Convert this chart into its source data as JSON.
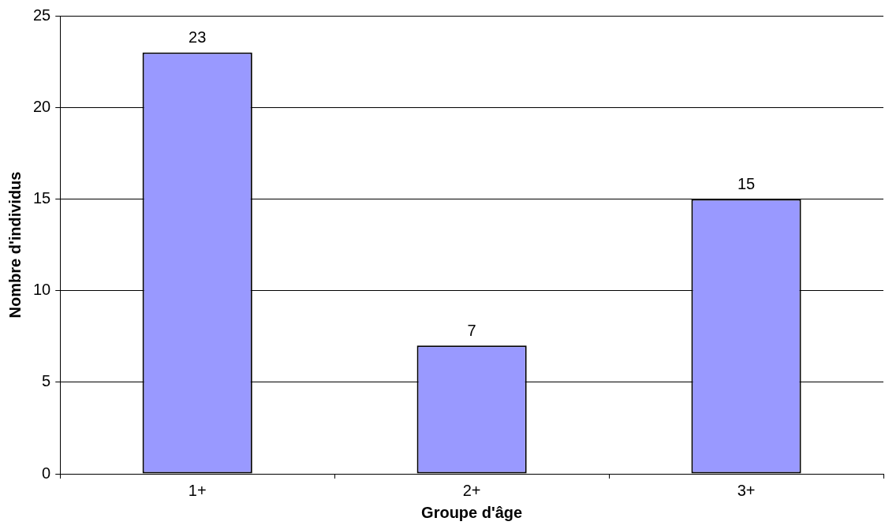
{
  "chart_data": {
    "type": "bar",
    "xlabel": "Groupe d'âge",
    "ylabel": "Nombre d'individus",
    "categories": [
      "1+",
      "2+",
      "3+"
    ],
    "values": [
      23,
      7,
      15
    ],
    "color": "#9999ff",
    "ylim": [
      0,
      25
    ],
    "yticks": [
      0,
      5,
      10,
      15,
      20,
      25
    ],
    "grid": "y",
    "data_labels": true
  }
}
